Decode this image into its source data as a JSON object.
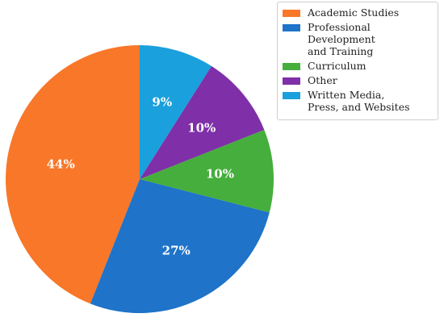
{
  "chart_data": {
    "type": "pie",
    "categories": [
      "Academic Studies",
      "Professional Development\nand Training",
      "Curriculum",
      "Other",
      "Written Media,\nPress, and Websites"
    ],
    "values": [
      44,
      27,
      10,
      10,
      9
    ],
    "value_labels": [
      "44%",
      "27%",
      "10%",
      "10%",
      "9%"
    ],
    "colors": [
      "#f97729",
      "#1f73c8",
      "#45ae3c",
      "#7f2fa8",
      "#1aa0dc"
    ],
    "start_angle_deg": 90,
    "direction": "counterclockwise",
    "legend_position": "top-right"
  }
}
